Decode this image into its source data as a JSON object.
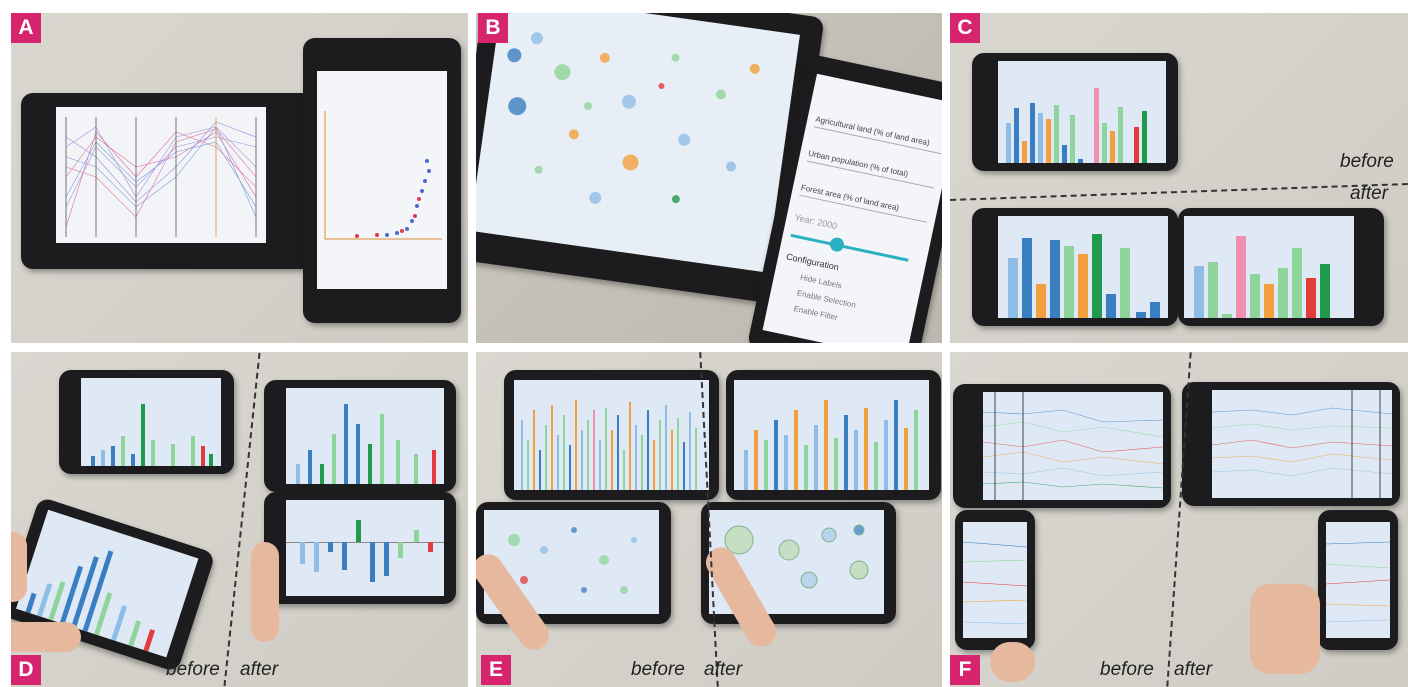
{
  "panels": {
    "a": {
      "badge": "A"
    },
    "b": {
      "badge": "B",
      "form_fields": [
        "Agricultural land (% of land area)",
        "Urban population (% of total)",
        "Forest area (% of land area)"
      ],
      "year_label": "Year: 2000",
      "config_title": "Configuration",
      "options": [
        "Hide Labels",
        "Enable Selection",
        "Enable Filter"
      ]
    },
    "c": {
      "badge": "C",
      "before": "before",
      "after": "after"
    },
    "d": {
      "badge": "D",
      "before": "before",
      "after": "after"
    },
    "e": {
      "badge": "E",
      "before": "before",
      "after": "after"
    },
    "f": {
      "badge": "F",
      "before": "before",
      "after": "after"
    }
  },
  "colors": {
    "badge": "#d6246e",
    "bar_blue": "#3a7ec2",
    "bar_lightblue": "#8fbde6",
    "bar_green": "#8fd49a",
    "bar_darkgreen": "#1f9a4a",
    "bar_orange": "#f2a03d",
    "bar_red": "#e23b3b",
    "bar_pink": "#f08fb0"
  }
}
